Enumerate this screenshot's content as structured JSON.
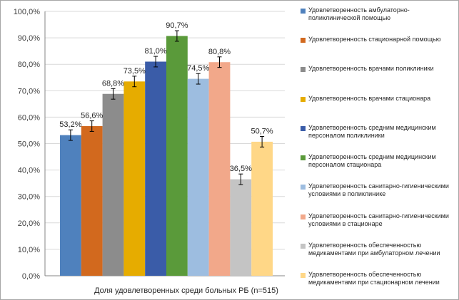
{
  "chart_data": {
    "type": "bar",
    "title": "",
    "xlabel": "Доля удовлетворенных  среди больных РБ (n=515)",
    "ylabel": "",
    "ylim": [
      0,
      100
    ],
    "yticks": [
      "0,0%",
      "10,0%",
      "20,0%",
      "30,0%",
      "40,0%",
      "50,0%",
      "60,0%",
      "70,0%",
      "80,0%",
      "90,0%",
      "100,0%"
    ],
    "grid": true,
    "legend_position": "right",
    "error_bar": 2,
    "series": [
      {
        "name": "Удовлетворенность амбулаторно-поликлинической помощью",
        "value": 53.2,
        "label": "53,2%",
        "color": "#4f81bd"
      },
      {
        "name": "Удовлетворенность стационарной помощью",
        "value": 56.6,
        "label": "56,6%",
        "color": "#d2691e"
      },
      {
        "name": "Удовлетворенность врачами поликлиники",
        "value": 68.8,
        "label": "68,8%",
        "color": "#8c8c8c"
      },
      {
        "name": "Удовлетворенность врачами стационара",
        "value": 73.5,
        "label": "73,5%",
        "color": "#e6ac00"
      },
      {
        "name": "Удовлетворенность средним медицинским персоналом поликлиники",
        "value": 81.0,
        "label": "81,0%",
        "color": "#3a5ca8"
      },
      {
        "name": "Удовлетворенность средним медицинским персоналом стационара",
        "value": 90.7,
        "label": "90,7%",
        "color": "#5a9a3a"
      },
      {
        "name": "Удовлетворенность санитарно-гигиеническими условиями в поликлинике",
        "value": 74.5,
        "label": "74,5%",
        "color": "#9dbde0"
      },
      {
        "name": "Удовлетворенность санитарно-гигиеническими условиями в стационаре",
        "value": 80.8,
        "label": "80,8%",
        "color": "#f2a88a"
      },
      {
        "name": "Удовлетворенность обеспеченностью медикаментами при амбулаторном лечении",
        "value": 36.5,
        "label": "36,5%",
        "color": "#c4c4c4"
      },
      {
        "name": "Удовлетворенность обеспеченностью медикаментами при стационарном лечении",
        "value": 50.7,
        "label": "50,7%",
        "color": "#ffd787"
      }
    ]
  }
}
